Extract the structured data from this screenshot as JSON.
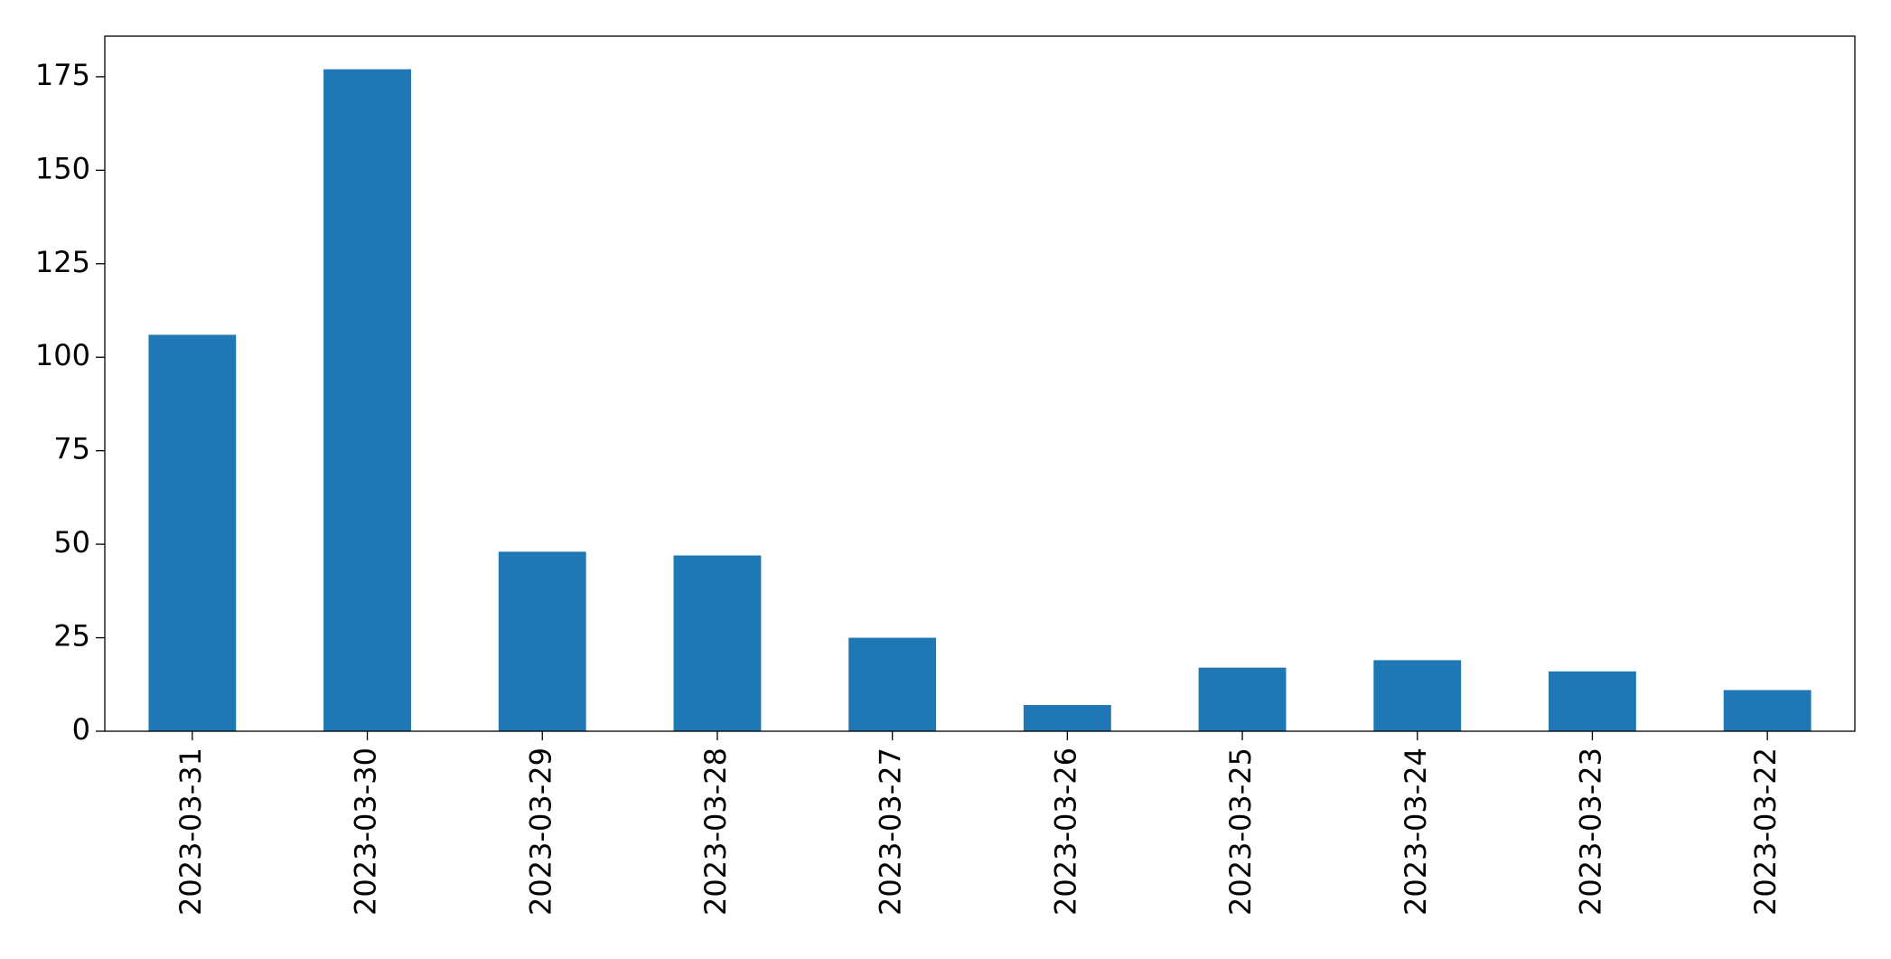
{
  "chart_data": {
    "type": "bar",
    "categories": [
      "2023-03-31",
      "2023-03-30",
      "2023-03-29",
      "2023-03-28",
      "2023-03-27",
      "2023-03-26",
      "2023-03-25",
      "2023-03-24",
      "2023-03-23",
      "2023-03-22"
    ],
    "values": [
      106,
      177,
      48,
      47,
      25,
      7,
      17,
      19,
      16,
      11
    ],
    "color": "#1f77b4",
    "ylim": [
      0,
      185.85
    ],
    "yticks": [
      0,
      25,
      50,
      75,
      100,
      125,
      150,
      175
    ],
    "grid": false
  }
}
